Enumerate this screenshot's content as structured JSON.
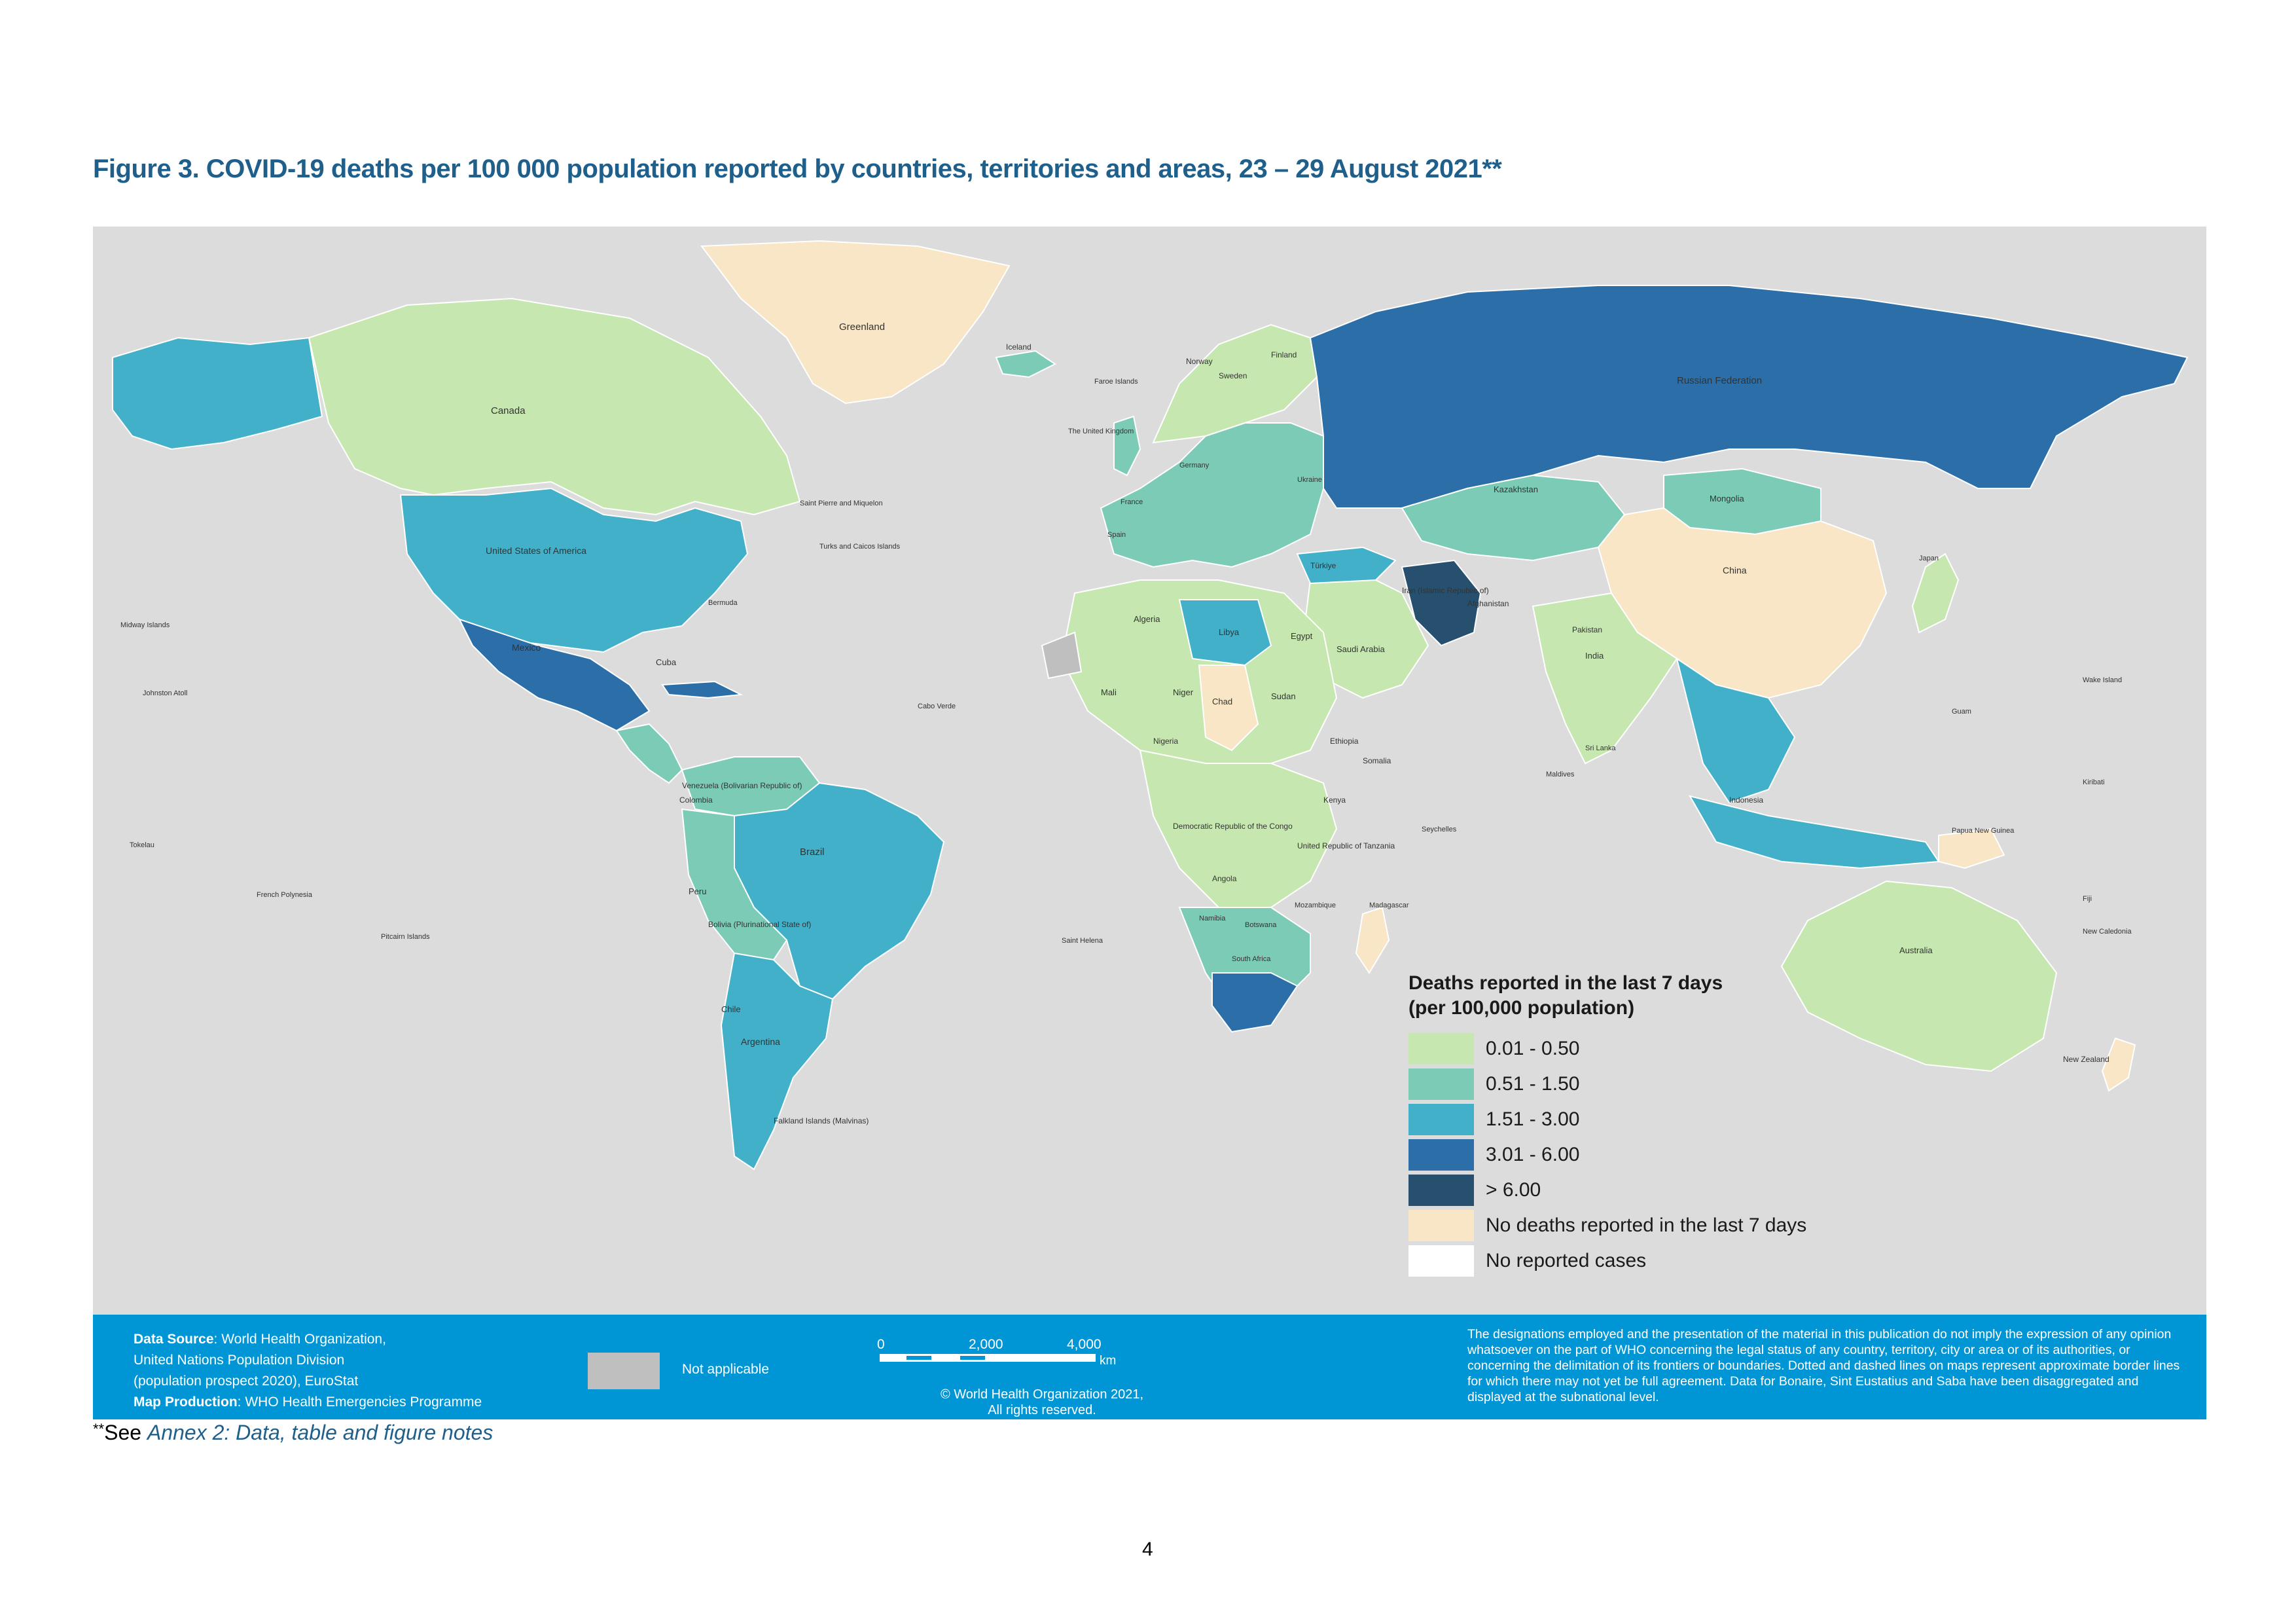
{
  "figure_title": "Figure 3. COVID-19 deaths per 100 000 population reported by countries, territories and areas, 23 – 29 August 2021**",
  "legend": {
    "title_line1": "Deaths reported in the last 7 days",
    "title_line2": "(per 100,000 population)",
    "items": [
      {
        "label": "0.01 - 0.50",
        "color": "#c6e8b0"
      },
      {
        "label": "0.51 - 1.50",
        "color": "#7ccbb7"
      },
      {
        "label": "1.51 - 3.00",
        "color": "#41b0c8"
      },
      {
        "label": "3.01 - 6.00",
        "color": "#2b6ea8"
      },
      {
        "label": "> 6.00",
        "color": "#26506e"
      },
      {
        "label": "No deaths reported in the last 7 days",
        "color": "#f8e6c6"
      },
      {
        "label": "No reported cases",
        "color": "#ffffff"
      }
    ]
  },
  "colors": {
    "ocean": "#dcdcdc",
    "footer_bg": "#0096d6",
    "not_applicable": "#bfbfbf",
    "title": "#1f5f8b"
  },
  "map_labels": {
    "greenland": "Greenland",
    "canada": "Canada",
    "usa": "United States of America",
    "mexico": "Mexico",
    "brazil": "Brazil",
    "argentina": "Argentina",
    "russia": "Russian Federation",
    "china": "China",
    "india": "India",
    "australia": "Australia",
    "kazakhstan": "Kazakhstan",
    "mongolia": "Mongolia",
    "algeria": "Algeria",
    "libya": "Libya",
    "egypt": "Egypt",
    "chad": "Chad",
    "sudan": "Sudan",
    "niger": "Niger",
    "mali": "Mali",
    "drc": "Democratic Republic of the Congo",
    "angola": "Angola",
    "south_africa": "South Africa",
    "saudi_arabia": "Saudi Arabia",
    "iran": "Iran (Islamic Republic of)",
    "peru": "Peru",
    "bolivia": "Bolivia (Plurinational State of)",
    "colombia": "Colombia",
    "venezuela": "Venezuela (Bolivarian Republic of)",
    "chile": "Chile",
    "new_zealand": "New Zealand",
    "iceland": "Iceland",
    "norway": "Norway",
    "sweden": "Sweden",
    "finland": "Finland",
    "uk": "The United Kingdom",
    "france": "France",
    "spain": "Spain",
    "germany": "Germany",
    "ukraine": "Ukraine",
    "turkey": "Türkiye",
    "indonesia": "Indonesia",
    "papua": "Papua New Guinea",
    "japan": "Japan",
    "madagascar": "Madagascar",
    "ethiopia": "Ethiopia",
    "nigeria": "Nigeria",
    "namibia": "Namibia",
    "botswana": "Botswana",
    "mozambique": "Mozambique",
    "kenya": "Kenya",
    "tanzania": "United Republic of Tanzania",
    "somalia": "Somalia",
    "pakistan": "Pakistan",
    "afghanistan": "Afghanistan",
    "cuba": "Cuba",
    "falkland": "Falkland Islands (Malvinas)",
    "midway": "Midway Islands",
    "johnston": "Johnston Atoll",
    "french_polynesia": "French Polynesia",
    "pitcairn": "Pitcairn Islands",
    "saint_helena": "Saint Helena",
    "cabo_verde": "Cabo Verde",
    "seychelles": "Seychelles",
    "maldives": "Maldives",
    "sri_lanka": "Sri Lanka",
    "guam": "Guam",
    "wake": "Wake Island",
    "hawaii_area": "Tokelau",
    "fiji": "Fiji",
    "kiribati": "Kiribati",
    "new_caledonia": "New Caledonia",
    "bermuda": "Bermuda",
    "saint_pierre": "Saint Pierre and Miquelon",
    "faroe": "Faroe Islands",
    "caribbean_list": "Turks and Caicos Islands"
  },
  "footer": {
    "data_source_label": "Data Source",
    "data_source_line1": ": World Health Organization,",
    "data_source_line2": "United Nations Population Division",
    "data_source_line3": "(population prospect 2020), EuroStat",
    "map_production_label": "Map Production",
    "map_production_value": ": WHO Health Emergencies Programme",
    "not_applicable": "Not applicable",
    "scale_0": "0",
    "scale_2000": "2,000",
    "scale_4000": "4,000",
    "scale_unit": "km",
    "copyright_line1": "© World Health Organization  2021,",
    "copyright_line2": "All rights reserved.",
    "disclaimer": "The designations employed and the presentation of the material in this publication do not imply the expression of any opinion whatsoever on the part of WHO concerning the legal status of any country, territory, city or area or of its authorities, or concerning the delimitation of its frontiers or boundaries. Dotted and dashed lines on maps represent approximate border lines for which there may not yet be full agreement. Data for Bonaire, Sint Eustatius and Saba have been disaggregated and displayed at the subnational level."
  },
  "footnote": {
    "mark": "**",
    "prefix": "See ",
    "annex": "Annex 2: Data, table and figure notes"
  },
  "page_number": "4"
}
